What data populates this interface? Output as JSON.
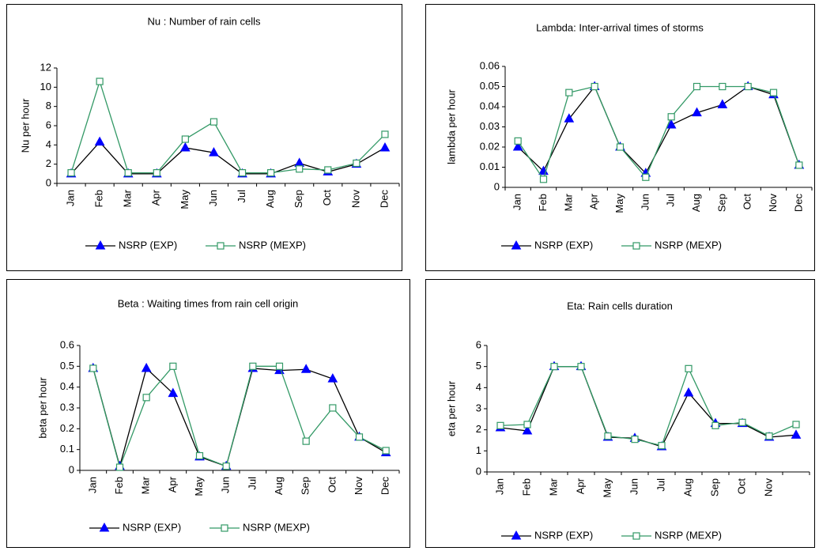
{
  "chart_data": [
    {
      "type": "line",
      "title": "Nu : Number of rain cells",
      "y_label": "Nu per hour",
      "categories": [
        "Jan",
        "Feb",
        "Mar",
        "Apr",
        "May",
        "Jun",
        "Jul",
        "Aug",
        "Sep",
        "Oct",
        "Nov",
        "Dec"
      ],
      "ylim": [
        0,
        12
      ],
      "yticks": [
        0,
        2,
        4,
        6,
        8,
        10,
        12
      ],
      "series": [
        {
          "name": "NSRP (EXP)",
          "color": "#000000",
          "marker": "triangle",
          "marker_color": "#0000ff",
          "values": [
            1,
            4.3,
            1,
            1,
            3.7,
            3.2,
            1,
            1,
            2.1,
            1.2,
            2,
            3.7
          ]
        },
        {
          "name": "NSRP (MEXP)",
          "color": "#339966",
          "marker": "square",
          "marker_color": "#339966",
          "values": [
            1.1,
            10.6,
            1.1,
            1.1,
            4.6,
            6.4,
            1.1,
            1.1,
            1.5,
            1.4,
            2.1,
            5.1
          ]
        }
      ]
    },
    {
      "type": "line",
      "title": "Lambda: Inter-arrival times of storms",
      "y_label": "lambda per hour",
      "categories": [
        "Jan",
        "Feb",
        "Mar",
        "Apr",
        "May",
        "Jun",
        "Jul",
        "Aug",
        "Sep",
        "Oct",
        "Nov",
        "Dec"
      ],
      "ylim": [
        0,
        0.06
      ],
      "yticks": [
        0,
        0.01,
        0.02,
        0.03,
        0.04,
        0.05,
        0.06
      ],
      "series": [
        {
          "name": "NSRP (EXP)",
          "color": "#000000",
          "marker": "triangle",
          "marker_color": "#0000ff",
          "values": [
            0.02,
            0.008,
            0.034,
            0.05,
            0.02,
            0.007,
            0.031,
            0.037,
            0.041,
            0.05,
            0.046,
            0.011
          ]
        },
        {
          "name": "NSRP (MEXP)",
          "color": "#339966",
          "marker": "square",
          "marker_color": "#339966",
          "values": [
            0.023,
            0.004,
            0.047,
            0.05,
            0.02,
            0.005,
            0.035,
            0.05,
            0.05,
            0.05,
            0.047,
            0.011
          ]
        }
      ]
    },
    {
      "type": "line",
      "title": "Beta : Waiting times from rain cell origin",
      "y_label": "beta per hour",
      "categories": [
        "Jan",
        "Feb",
        "Mar",
        "Apr",
        "May",
        "Jun",
        "Jul",
        "Aug",
        "Sep",
        "Oct",
        "Nov",
        "Dec"
      ],
      "ylim": [
        0,
        0.6
      ],
      "yticks": [
        0,
        0.1,
        0.2,
        0.3,
        0.4,
        0.5,
        0.6
      ],
      "series": [
        {
          "name": "NSRP (EXP)",
          "color": "#000000",
          "marker": "triangle",
          "marker_color": "#0000ff",
          "values": [
            0.49,
            0.02,
            0.49,
            0.37,
            0.065,
            0.02,
            0.49,
            0.48,
            0.485,
            0.44,
            0.16,
            0.085
          ]
        },
        {
          "name": "NSRP (MEXP)",
          "color": "#339966",
          "marker": "square",
          "marker_color": "#339966",
          "values": [
            0.49,
            0.015,
            0.35,
            0.5,
            0.07,
            0.02,
            0.5,
            0.5,
            0.14,
            0.3,
            0.16,
            0.095
          ]
        }
      ]
    },
    {
      "type": "line",
      "title": "Eta: Rain cells duration",
      "y_label": "eta per hour",
      "categories": [
        "Jan",
        "Feb",
        "Mar",
        "Apr",
        "May",
        "Jun",
        "Jul",
        "Aug",
        "Sep",
        "Oct",
        "Nov",
        null
      ],
      "ylim": [
        0,
        6
      ],
      "yticks": [
        0,
        1,
        2,
        3,
        4,
        5,
        6
      ],
      "series": [
        {
          "name": "NSRP (EXP)",
          "color": "#000000",
          "marker": "triangle",
          "marker_color": "#0000ff",
          "values": [
            2.1,
            1.95,
            5,
            5,
            1.65,
            1.6,
            1.2,
            3.75,
            2.3,
            2.3,
            1.65,
            1.75
          ]
        },
        {
          "name": "NSRP (MEXP)",
          "color": "#339966",
          "marker": "square",
          "marker_color": "#339966",
          "values": [
            2.2,
            2.25,
            5,
            5,
            1.7,
            1.55,
            1.25,
            4.9,
            2.2,
            2.35,
            1.7,
            2.25
          ]
        }
      ]
    }
  ]
}
